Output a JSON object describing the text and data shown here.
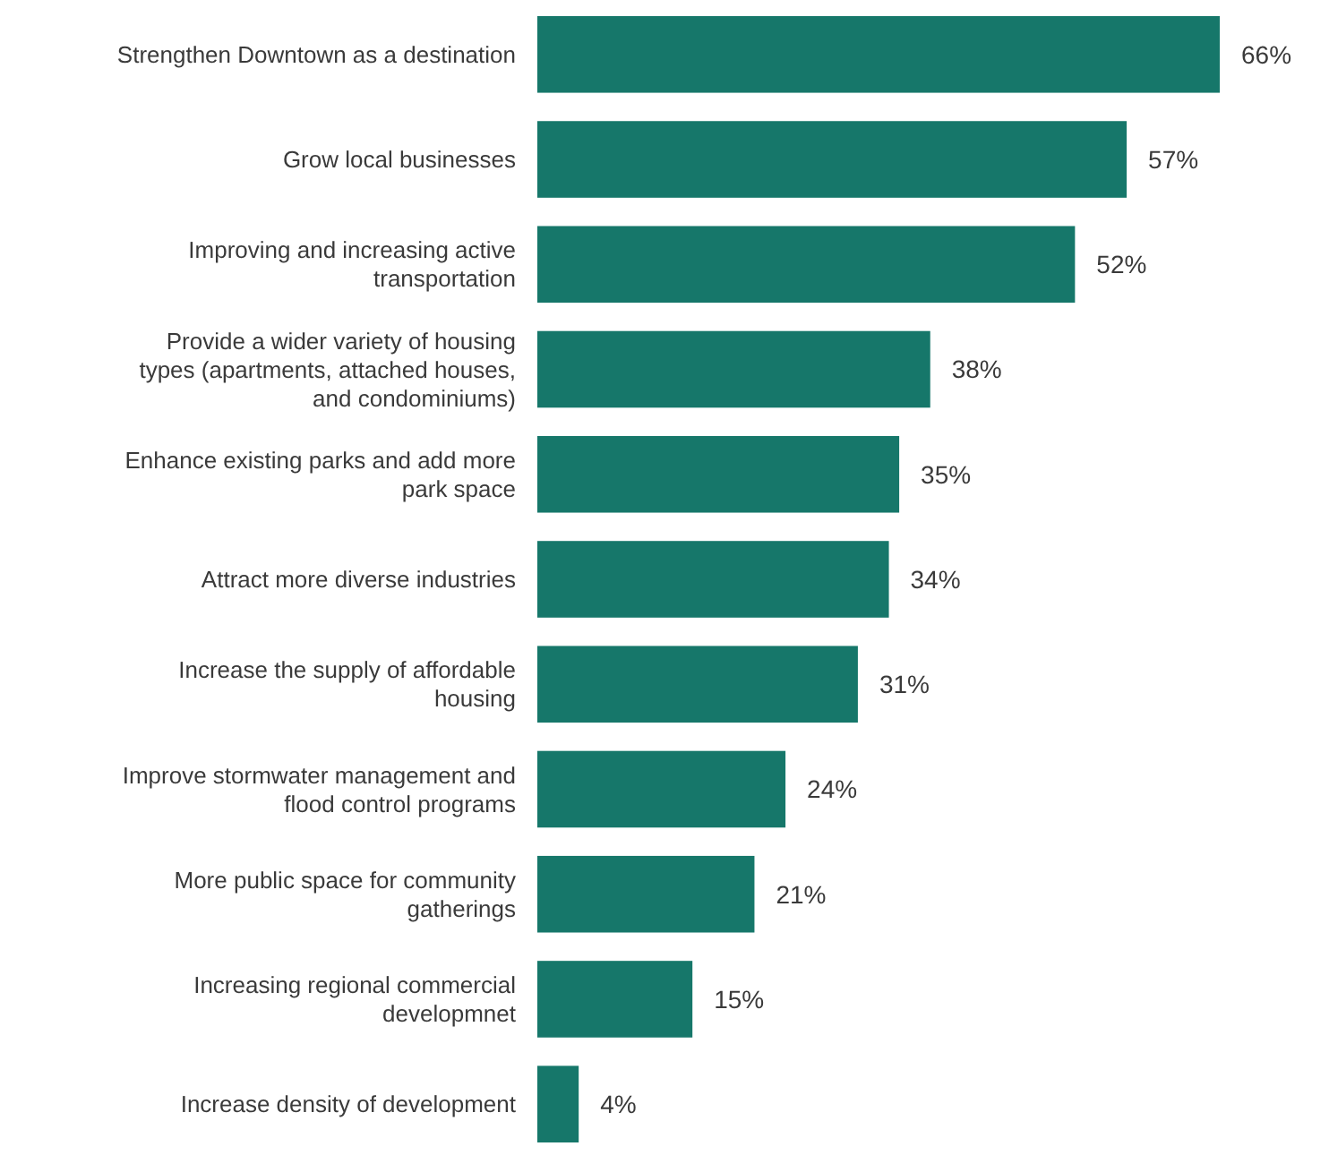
{
  "chart_data": {
    "type": "bar",
    "orientation": "horizontal",
    "color": "#16776a",
    "categories": [
      "Strengthen Downtown as a destination",
      "Grow local businesses",
      "Improving and increasing active\ntransportation",
      "Provide a wider variety of housing\ntypes (apartments, attached houses,\nand condominiums)",
      "Enhance existing parks and add more\npark space",
      "Attract more diverse industries",
      "Increase the supply of affordable\nhousing",
      "Improve stormwater management and\nflood control programs",
      "More public space for community\ngatherings",
      "Increasing regional commercial\ndevelopmnet",
      "Increase density of development"
    ],
    "values": [
      66,
      57,
      52,
      38,
      35,
      34,
      31,
      24,
      21,
      15,
      4
    ],
    "value_labels": [
      "66%",
      "57%",
      "52%",
      "38%",
      "35%",
      "34%",
      "31%",
      "24%",
      "21%",
      "15%",
      "4%"
    ]
  }
}
